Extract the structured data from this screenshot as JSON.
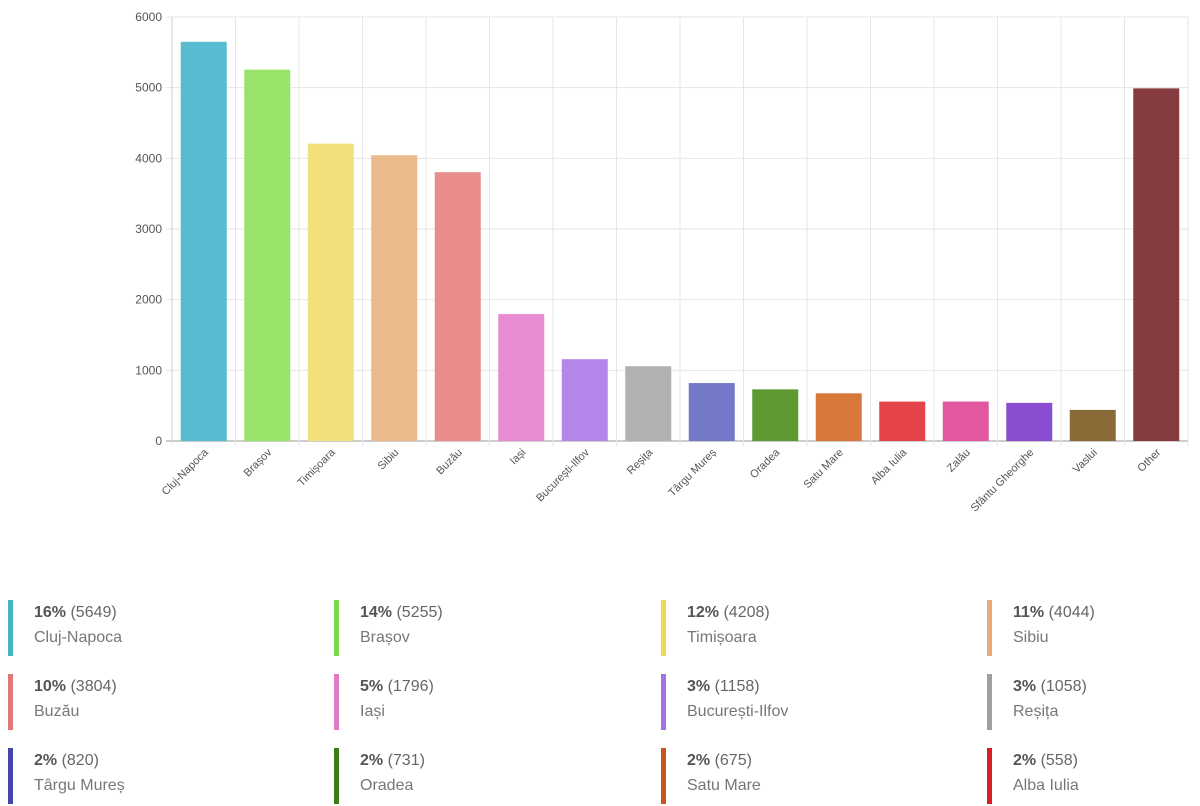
{
  "chart_data": {
    "type": "bar",
    "categories": [
      "Cluj-Napoca",
      "Brașov",
      "Timișoara",
      "Sibiu",
      "Buzău",
      "Iași",
      "București-Ilfov",
      "Reșița",
      "Târgu Mureș",
      "Oradea",
      "Satu Mare",
      "Alba Iulia",
      "Zalău",
      "Sfântu Gheorghe",
      "Vaslui",
      "Other"
    ],
    "values": [
      5649,
      5255,
      4208,
      4044,
      3804,
      1796,
      1158,
      1058,
      820,
      731,
      675,
      558,
      558,
      540,
      440,
      4990
    ],
    "colors": [
      "#57bccf",
      "#98e36a",
      "#f4e07a",
      "#ebba8c",
      "#e88c8b",
      "#e98bd3",
      "#b386ea",
      "#b1b1b1",
      "#7379c8",
      "#5e9a32",
      "#d8783a",
      "#e44447",
      "#e2589f",
      "#8a4cd0",
      "#8a6b37",
      "#853b40"
    ],
    "ylim": [
      0,
      6000
    ],
    "yticks": [
      0,
      1000,
      2000,
      3000,
      4000,
      5000,
      6000
    ],
    "grid": true,
    "xlabel": "",
    "ylabel": "",
    "title": ""
  },
  "legend": [
    {
      "pct": "16%",
      "count": "(5649)",
      "name": "Cluj-Napoca",
      "color": "#47b3c5"
    },
    {
      "pct": "14%",
      "count": "(5255)",
      "name": "Brașov",
      "color": "#7ddb4a"
    },
    {
      "pct": "12%",
      "count": "(4208)",
      "name": "Timișoara",
      "color": "#f0da52"
    },
    {
      "pct": "11%",
      "count": "(4044)",
      "name": "Sibiu",
      "color": "#e6ad78"
    },
    {
      "pct": "10%",
      "count": "(3804)",
      "name": "Buzău",
      "color": "#e07a7a"
    },
    {
      "pct": "5%",
      "count": "(1796)",
      "name": "Iași",
      "color": "#e07ac7"
    },
    {
      "pct": "3%",
      "count": "(1158)",
      "name": "București-Ilfov",
      "color": "#a273e2"
    },
    {
      "pct": "3%",
      "count": "(1058)",
      "name": "Reșița",
      "color": "#9f9f9f"
    },
    {
      "pct": "2%",
      "count": "(820)",
      "name": "Târgu Mureș",
      "color": "#4446aa"
    },
    {
      "pct": "2%",
      "count": "(731)",
      "name": "Oradea",
      "color": "#3f7d14"
    },
    {
      "pct": "2%",
      "count": "(675)",
      "name": "Satu Mare",
      "color": "#c4561b"
    },
    {
      "pct": "2%",
      "count": "(558)",
      "name": "Alba Iulia",
      "color": "#d81e22"
    }
  ]
}
